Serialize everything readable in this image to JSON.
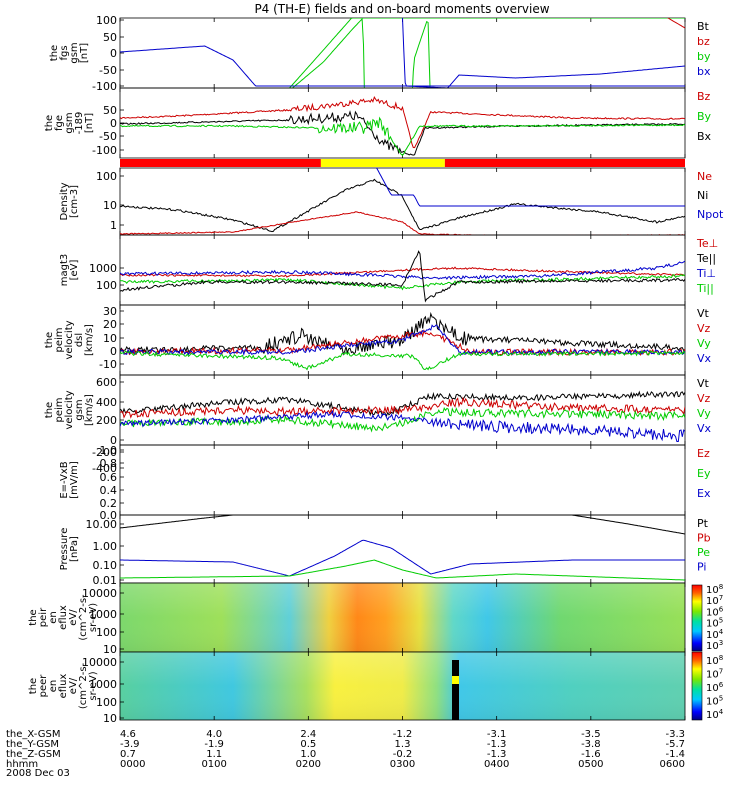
{
  "title": "P4 (TH-E) fields and on-board moments overview",
  "date_label": "2008 Dec 03",
  "x_axis": {
    "ticks": [
      "0000",
      "0100",
      "0200",
      "0300",
      "0400",
      "0500",
      "0600"
    ],
    "rows": [
      {
        "label": "the_X-GSM",
        "values": [
          "4.6",
          "4.0",
          "2.4",
          "-1.2",
          "-3.1",
          "-3.5",
          "-3.3"
        ]
      },
      {
        "label": "the_Y-GSM",
        "values": [
          "-3.9",
          "-1.9",
          "0.5",
          "1.3",
          "-1.3",
          "-3.8",
          "-5.7"
        ]
      },
      {
        "label": "the_Z-GSM",
        "values": [
          "0.7",
          "1.1",
          "1.0",
          "-0.2",
          "-1.3",
          "-1.6",
          "-1.4"
        ]
      },
      {
        "label": "hhmm",
        "values": [
          "0000",
          "0100",
          "0200",
          "0300",
          "0400",
          "0500",
          "0600"
        ]
      }
    ]
  },
  "colorbar": {
    "panel10_labels": [
      "10^8",
      "10^7",
      "10^6",
      "10^5",
      "10^4",
      "10^3"
    ],
    "panel11_labels": [
      "10^8",
      "10^7",
      "10^6",
      "10^5",
      "10^4"
    ]
  },
  "chart_data": [
    {
      "type": "line",
      "ylabel_lines": [
        "the",
        "fgs",
        "gsm",
        "[nT]"
      ],
      "yticks": [
        "100",
        "50",
        "0",
        "-50",
        "-100"
      ],
      "ylim": [
        -100,
        100
      ],
      "series": [
        {
          "name": "Bt",
          "color": "#000000"
        },
        {
          "name": "bz",
          "color": "#cc0000"
        },
        {
          "name": "by",
          "color": "#00cc00"
        },
        {
          "name": "bx",
          "color": "#0000cc"
        }
      ]
    },
    {
      "type": "line",
      "ylabel_lines": [
        "the",
        "fge",
        "gsm",
        "-189",
        "[nT]"
      ],
      "yticks": [
        "50",
        "0",
        "-50",
        "-100"
      ],
      "ylim": [
        -130,
        70
      ],
      "series": [
        {
          "name": "Bz",
          "color": "#cc0000"
        },
        {
          "name": "By",
          "color": "#00cc00"
        },
        {
          "name": "Bx",
          "color": "#000000"
        }
      ]
    },
    {
      "type": "bar",
      "label": "mode bar",
      "colors": [
        "#ff0000",
        "#ffff00",
        "#ff0000"
      ],
      "segments_hhmm": [
        [
          "0000",
          "0208"
        ],
        [
          "0208",
          "0327"
        ],
        [
          "0327",
          "0600"
        ]
      ]
    },
    {
      "type": "line",
      "ylog": true,
      "ylabel_lines": [
        "Density",
        "[cm-3]"
      ],
      "yticks": [
        "100",
        "10",
        "1"
      ],
      "ylim": [
        0.4,
        100
      ],
      "series": [
        {
          "name": "Ne",
          "color": "#cc0000"
        },
        {
          "name": "Ni",
          "color": "#000000"
        },
        {
          "name": "Npot",
          "color": "#0000cc"
        }
      ]
    },
    {
      "type": "line",
      "ylog": true,
      "ylabel_lines": [
        "magt3",
        "[eV]"
      ],
      "yticks": [
        "1000",
        "100"
      ],
      "ylim": [
        40,
        8000
      ],
      "series": [
        {
          "name": "Te⊥",
          "color": "#cc0000"
        },
        {
          "name": "Te||",
          "color": "#000000"
        },
        {
          "name": "Ti⊥",
          "color": "#0000cc"
        },
        {
          "name": "Ti||",
          "color": "#00cc00"
        }
      ]
    },
    {
      "type": "line",
      "ylabel_lines": [
        "the",
        "peim",
        "velocity",
        "dsl",
        "[km/s]"
      ],
      "yticks": [
        "30",
        "20",
        "10",
        "0",
        "-10"
      ],
      "ylim": [
        -15,
        30
      ],
      "series": [
        {
          "name": "Vt",
          "color": "#000000"
        },
        {
          "name": "Vz",
          "color": "#cc0000"
        },
        {
          "name": "Vy",
          "color": "#00cc00"
        },
        {
          "name": "Vx",
          "color": "#0000cc"
        }
      ]
    },
    {
      "type": "line",
      "ylabel_lines": [
        "the",
        "peim",
        "velocity",
        "gsm",
        "[km/s]"
      ],
      "yticks": [
        "600",
        "400",
        "200",
        "0",
        "-200",
        "-400"
      ],
      "ylim": [
        -450,
        600
      ],
      "series": [
        {
          "name": "Vt",
          "color": "#000000"
        },
        {
          "name": "Vz",
          "color": "#cc0000"
        },
        {
          "name": "Vy",
          "color": "#00cc00"
        },
        {
          "name": "Vx",
          "color": "#0000cc"
        }
      ]
    },
    {
      "type": "line",
      "ylabel_lines": [
        "E=-VxB",
        "[mV/m]"
      ],
      "yticks": [
        "1.0",
        "0.8",
        "0.6",
        "0.4",
        "0.2",
        "0.0"
      ],
      "ylim": [
        0,
        1
      ],
      "series": [
        {
          "name": "Ez",
          "color": "#cc0000"
        },
        {
          "name": "Ey",
          "color": "#00cc00"
        },
        {
          "name": "Ex",
          "color": "#0000cc"
        }
      ]
    },
    {
      "type": "line",
      "ylog": true,
      "ylabel_lines": [
        "Pressure",
        "[nPa]"
      ],
      "yticks": [
        "10.00",
        "1.00",
        "0.10",
        "0.01"
      ],
      "ylim": [
        0.007,
        30
      ],
      "series": [
        {
          "name": "Pt",
          "color": "#000000"
        },
        {
          "name": "Pb",
          "color": "#cc0000"
        },
        {
          "name": "Pe",
          "color": "#00cc00"
        },
        {
          "name": "Pi",
          "color": "#0000cc"
        }
      ]
    },
    {
      "type": "heatmap",
      "ylabel_lines": [
        "the",
        "peir",
        "en",
        "eflux",
        "eV/",
        "(cm^2-s-",
        "sr-eV)"
      ],
      "yticks": [
        "10000",
        "1000",
        "100",
        "10"
      ]
    },
    {
      "type": "heatmap",
      "ylabel_lines": [
        "the",
        "peer",
        "en",
        "eflux",
        "eV/",
        "(cm^2-s-",
        "sr-eV)"
      ],
      "yticks": [
        "10000",
        "1000",
        "100",
        "10"
      ]
    }
  ]
}
